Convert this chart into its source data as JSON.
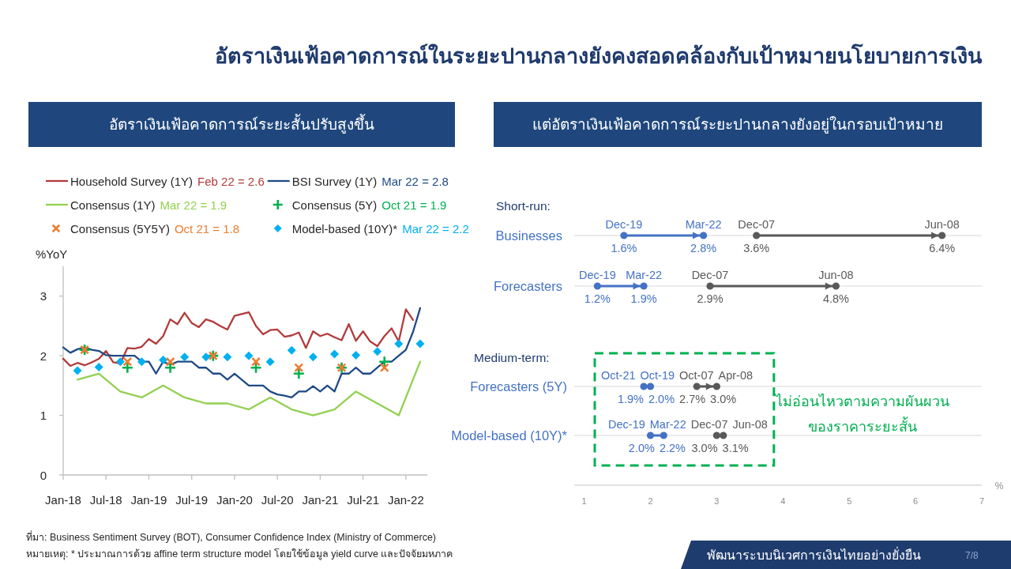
{
  "chart_data": [
    {
      "type": "line",
      "title": "อัตราเงินเฟ้อคาดการณ์ในระยะปานกลางยังคงสอดคล้องกับเป้าหมายนโยบายการเงิน",
      "subtitle": "อัตราเงินเฟ้อคาดการณ์ระยะสั้นปรับสูงขึ้น",
      "ylabel": "%YoY",
      "x": [
        "2018-01",
        "2018-02",
        "2018-03",
        "2018-04",
        "2018-05",
        "2018-06",
        "2018-07",
        "2018-08",
        "2018-09",
        "2018-10",
        "2018-11",
        "2018-12",
        "2019-01",
        "2019-02",
        "2019-03",
        "2019-04",
        "2019-05",
        "2019-06",
        "2019-07",
        "2019-08",
        "2019-09",
        "2019-10",
        "2019-11",
        "2019-12",
        "2020-01",
        "2020-02",
        "2020-03",
        "2020-04",
        "2020-05",
        "2020-06",
        "2020-07",
        "2020-08",
        "2020-09",
        "2020-10",
        "2020-11",
        "2020-12",
        "2021-01",
        "2021-02",
        "2021-03",
        "2021-04",
        "2021-05",
        "2021-06",
        "2021-07",
        "2021-08",
        "2021-09",
        "2021-10",
        "2021-11",
        "2021-12",
        "2022-01",
        "2022-02",
        "2022-03"
      ],
      "xlim": [
        "2018-01",
        "2022-04"
      ],
      "xticks": [
        {
          "value": "2018-01",
          "label": "Jan-18"
        },
        {
          "value": "2018-07",
          "label": "Jul-18"
        },
        {
          "value": "2019-01",
          "label": "Jan-19"
        },
        {
          "value": "2019-07",
          "label": "Jul-19"
        },
        {
          "value": "2020-01",
          "label": "Jan-20"
        },
        {
          "value": "2020-07",
          "label": "Jul-20"
        },
        {
          "value": "2021-01",
          "label": "Jan-21"
        },
        {
          "value": "2021-07",
          "label": "Jul-21"
        },
        {
          "value": "2022-01",
          "label": "Jan-22"
        }
      ],
      "ylim": [
        0,
        3.5
      ],
      "yticks": [
        0,
        1,
        2,
        3
      ],
      "legend": "top",
      "series": [
        {
          "name": "Household Survey (1Y)",
          "color": "#b23b3b",
          "values": [
            1.95,
            1.83,
            1.88,
            1.84,
            1.89,
            1.95,
            2.08,
            1.89,
            1.87,
            2.13,
            2.12,
            2.15,
            2.28,
            2.2,
            2.33,
            2.61,
            2.53,
            2.72,
            2.55,
            2.48,
            2.61,
            2.57,
            2.5,
            2.44,
            2.67,
            2.7,
            2.73,
            2.5,
            2.36,
            2.43,
            2.44,
            2.32,
            2.34,
            2.39,
            2.13,
            2.41,
            2.33,
            2.37,
            2.31,
            2.26,
            2.53,
            2.25,
            2.41,
            2.24,
            2.16,
            2.33,
            2.46,
            2.24,
            2.78,
            2.6,
            null
          ]
        },
        {
          "name": "BSI Survey (1Y)",
          "color": "#1f4a86",
          "values": [
            2.14,
            2.05,
            2.11,
            2.14,
            2.1,
            2.08,
            2.01,
            2.0,
            2.0,
            2.0,
            2.0,
            1.9,
            1.9,
            1.7,
            1.9,
            1.85,
            1.9,
            1.9,
            1.9,
            1.8,
            1.8,
            1.7,
            1.7,
            1.6,
            1.7,
            1.6,
            1.5,
            1.5,
            1.5,
            1.4,
            1.35,
            1.33,
            1.3,
            1.4,
            1.4,
            1.49,
            1.4,
            1.5,
            1.4,
            1.7,
            1.7,
            1.8,
            1.7,
            1.7,
            1.8,
            1.9,
            1.9,
            2.0,
            2.1,
            2.4,
            2.8
          ]
        },
        {
          "name": "Consensus (1Y)",
          "color": "#92d050",
          "x": [
            "2018-03",
            "2018-06",
            "2018-09",
            "2018-12",
            "2019-03",
            "2019-06",
            "2019-09",
            "2019-12",
            "2020-03",
            "2020-06",
            "2020-09",
            "2020-12",
            "2021-03",
            "2021-06",
            "2021-09",
            "2021-12",
            "2022-03"
          ],
          "values": [
            1.6,
            1.7,
            1.4,
            1.3,
            1.5,
            1.3,
            1.2,
            1.2,
            1.1,
            1.3,
            1.1,
            1.0,
            1.1,
            1.4,
            1.2,
            1.0,
            1.9
          ]
        },
        {
          "name": "Consensus (5Y)",
          "type": "scatter",
          "marker": "cross",
          "color": "#00b050",
          "x": [
            "2018-04",
            "2018-10",
            "2019-04",
            "2019-10",
            "2020-04",
            "2020-10",
            "2021-04",
            "2021-10"
          ],
          "values": [
            2.1,
            1.8,
            1.8,
            2.0,
            1.8,
            1.7,
            1.8,
            1.9
          ]
        },
        {
          "name": "Consensus (5Y5Y)",
          "type": "scatter",
          "marker": "x",
          "color": "#ed7d31",
          "x": [
            "2018-04",
            "2018-10",
            "2019-04",
            "2019-10",
            "2020-04",
            "2020-10",
            "2021-04",
            "2021-10"
          ],
          "values": [
            2.1,
            1.9,
            1.9,
            2.0,
            1.9,
            1.8,
            1.8,
            1.8
          ]
        },
        {
          "name": "Model-based (10Y)*",
          "type": "scatter",
          "marker": "diamond",
          "color": "#00b0f0",
          "x": [
            "2018-03",
            "2018-06",
            "2018-09",
            "2018-12",
            "2019-03",
            "2019-06",
            "2019-09",
            "2019-12",
            "2020-03",
            "2020-06",
            "2020-09",
            "2020-12",
            "2021-03",
            "2021-06",
            "2021-09",
            "2021-12",
            "2022-03"
          ],
          "values": [
            1.75,
            1.81,
            1.9,
            1.9,
            1.93,
            1.98,
            1.98,
            1.98,
            2.0,
            1.9,
            2.09,
            1.98,
            2.03,
            2.01,
            2.07,
            2.2,
            2.2
          ]
        }
      ],
      "annotations": [
        "Feb 22 = 2.6",
        "Mar 22 = 2.8",
        "Mar 22 = 1.9",
        "Oct 21 = 1.9",
        "Oct 21 = 1.8",
        "Mar 22 = 2.2",
        "ที่มา: Business Sentiment Survey (BOT), Consumer Confidence Index (Ministry of Commerce)",
        "หมายเหตุ: * ประมาณการด้วย affine term structure model โดยใช้ข้อมูล yield curve และปัจจัยมหภาค",
        "พัฒนาระบบนิเวศการเงินไทยอย่างยั่งยืน",
        "7/8"
      ]
    },
    {
      "type": "bar",
      "orientation": "horizontal",
      "title": "แต่อัตราเงินเฟ้อคาดการณ์ระยะปานกลางยังอยู่ในกรอบเป้าหมาย",
      "subtitle": "Short-run:",
      "categories": [
        "Businesses",
        "Forecasters"
      ],
      "series": [
        {
          "color": "#4472c4",
          "base": [
            1.6,
            1.2
          ],
          "values": [
            1.2,
            0.7
          ]
        },
        {
          "color": "#595959",
          "base": [
            3.6,
            2.9
          ],
          "values": [
            2.8,
            1.9
          ]
        }
      ],
      "xlim": [
        0.85,
        7
      ],
      "tick_labels": "y",
      "grid": "y",
      "marker": "circle",
      "annotations": [
        {
          "text": "Dec-19",
          "x": 1.6,
          "y": "Businesses"
        },
        {
          "text": "1.6%",
          "x": 1.6,
          "y": "Businesses"
        },
        {
          "text": "Mar-22",
          "x": 2.8,
          "y": "Businesses"
        },
        {
          "text": "2.8%",
          "x": 2.8,
          "y": "Businesses"
        },
        {
          "text": "Dec-07",
          "x": 3.6,
          "y": "Businesses"
        },
        {
          "text": "3.6%",
          "x": 3.6,
          "y": "Businesses"
        },
        {
          "text": "Jun-08",
          "x": 6.4,
          "y": "Businesses"
        },
        {
          "text": "6.4%",
          "x": 6.4,
          "y": "Businesses"
        },
        {
          "text": "Dec-19",
          "x": 1.2,
          "y": "Forecasters"
        },
        {
          "text": "1.2%",
          "x": 1.2,
          "y": "Forecasters"
        },
        {
          "text": "Mar-22",
          "x": 1.9,
          "y": "Forecasters"
        },
        {
          "text": "1.9%",
          "x": 1.9,
          "y": "Forecasters"
        },
        {
          "text": "Dec-07",
          "x": 2.9,
          "y": "Forecasters"
        },
        {
          "text": "2.9%",
          "x": 2.9,
          "y": "Forecasters"
        },
        {
          "text": "Jun-08",
          "x": 4.8,
          "y": "Forecasters"
        },
        {
          "text": "4.8%",
          "x": 4.8,
          "y": "Forecasters"
        }
      ]
    },
    {
      "type": "bar",
      "orientation": "horizontal",
      "subtitle": "Medium-term:",
      "categories": [
        "Forecasters (5Y)",
        "Model-based (10Y)*"
      ],
      "series": [
        {
          "color": "#4472c4",
          "base": [
            2.0,
            2.0
          ],
          "values": [
            -0.1,
            0.2
          ]
        },
        {
          "color": "#595959",
          "base": [
            2.7,
            3.0
          ],
          "values": [
            0.3,
            0.1
          ]
        }
      ],
      "xlim": [
        0.85,
        7
      ],
      "xticks": [
        1,
        2,
        3,
        4,
        5,
        6,
        7
      ],
      "xlabel": "%",
      "grid": "y",
      "marker": "circle",
      "annotations": [
        {
          "text": "Oct-21",
          "x": 1.9,
          "y": "Forecasters (5Y)"
        },
        {
          "text": "1.9%",
          "x": 1.9,
          "y": "Forecasters (5Y)"
        },
        {
          "text": "Oct-19",
          "x": 2.0,
          "y": "Forecasters (5Y)"
        },
        {
          "text": "2.0%",
          "x": 2.0,
          "y": "Forecasters (5Y)"
        },
        {
          "text": "Oct-07",
          "x": 2.7,
          "y": "Forecasters (5Y)"
        },
        {
          "text": "2.7%",
          "x": 2.7,
          "y": "Forecasters (5Y)"
        },
        {
          "text": "Apr-08",
          "x": 3.0,
          "y": "Forecasters (5Y)"
        },
        {
          "text": "3.0%",
          "x": 3.0,
          "y": "Forecasters (5Y)"
        },
        {
          "text": "Dec-19",
          "x": 2.0,
          "y": "Model-based (10Y)*"
        },
        {
          "text": "2.0%",
          "x": 2.0,
          "y": "Model-based (10Y)*"
        },
        {
          "text": "Mar-22",
          "x": 2.2,
          "y": "Model-based (10Y)*"
        },
        {
          "text": "2.2%",
          "x": 2.2,
          "y": "Model-based (10Y)*"
        },
        {
          "text": "Dec-07",
          "x": 3.0,
          "y": "Model-based (10Y)*"
        },
        {
          "text": "3.0%",
          "x": 3.0,
          "y": "Model-based (10Y)*"
        },
        {
          "text": "Jun-08",
          "x": 3.1,
          "y": "Model-based (10Y)*"
        },
        {
          "text": "3.1%",
          "x": 3.1,
          "y": "Model-based (10Y)*"
        },
        "ไม่อ่อนไหวตามความผันผวน\nของราคาระยะสั้น"
      ]
    }
  ]
}
